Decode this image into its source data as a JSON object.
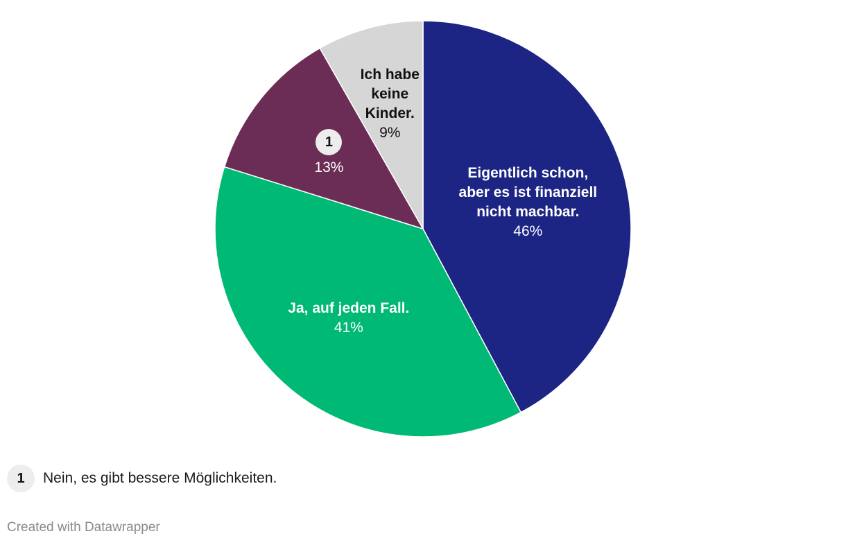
{
  "chart_data": {
    "type": "pie",
    "slices": [
      {
        "label": "Eigentlich schon, aber es ist finanziell nicht machbar.",
        "label_lines": [
          "Eigentlich schon,",
          "aber es ist finanziell",
          "nicht machbar."
        ],
        "value": 46,
        "value_label": "46%",
        "color": "#1c2484",
        "text_color": "#ffffff"
      },
      {
        "label": "Ja, auf jeden Fall.",
        "label_lines": [
          "Ja, auf jeden Fall."
        ],
        "value": 41,
        "value_label": "41%",
        "color": "#00b975",
        "text_color": "#ffffff"
      },
      {
        "label": "Nein, es gibt bessere Möglichkeiten.",
        "label_lines": [],
        "badge": "1",
        "value": 13,
        "value_label": "13%",
        "color": "#6b2d56",
        "text_color": "#ffffff"
      },
      {
        "label": "Ich habe keine Kinder.",
        "label_lines": [
          "Ich habe",
          "keine",
          "Kinder."
        ],
        "value": 9,
        "value_label": "9%",
        "color": "#d6d6d6",
        "text_color": "#111111"
      }
    ],
    "start": "12 o'clock",
    "direction": "clockwise"
  },
  "footnote": {
    "badge": "1",
    "text": "Nein, es gibt bessere Möglichkeiten."
  },
  "credit": "Created with Datawrapper",
  "colors": {
    "badge_bg": "#ededed",
    "badge_text": "#111111",
    "slice_border": "#ffffff"
  }
}
